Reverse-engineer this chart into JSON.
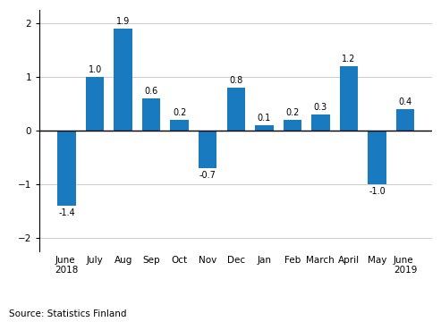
{
  "categories": [
    "June\n2018",
    "July",
    "Aug",
    "Sep",
    "Oct",
    "Nov",
    "Dec",
    "Jan",
    "Feb",
    "March",
    "April",
    "May",
    "June\n2019"
  ],
  "values": [
    -1.4,
    1.0,
    1.9,
    0.6,
    0.2,
    -0.7,
    0.8,
    0.1,
    0.2,
    0.3,
    1.2,
    -1.0,
    0.4
  ],
  "bar_color": "#1a7abf",
  "ylim": [
    -2.25,
    2.25
  ],
  "yticks": [
    -2,
    -1,
    0,
    1,
    2
  ],
  "source_text": "Source: Statistics Finland",
  "label_fontsize": 7.0,
  "tick_fontsize": 7.5,
  "source_fontsize": 7.5,
  "bar_width": 0.65
}
